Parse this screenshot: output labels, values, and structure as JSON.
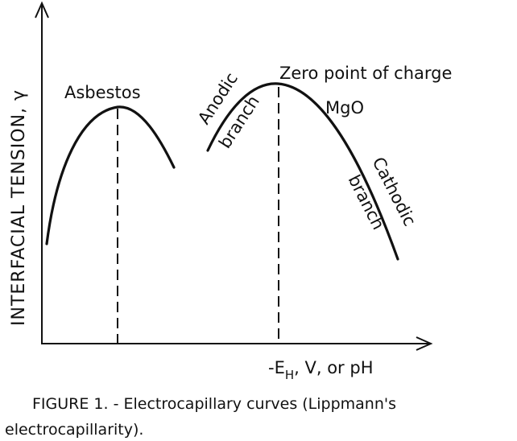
{
  "diagram": {
    "y_axis_label": "INTERFACIAL TENSION, γ",
    "x_axis_label": {
      "main": "-E",
      "subscript": "H",
      "rest": ", V, or pH"
    },
    "curves": [
      {
        "label": "Asbestos"
      },
      {
        "label": "MgO",
        "peak_label": "Zero point of charge",
        "left_branch": [
          "Anodic",
          "branch"
        ],
        "right_branch": [
          "Cathodic",
          "branch"
        ]
      }
    ]
  },
  "caption": {
    "line1": "FIGURE 1. - Electrocapillary curves (Lippmann's",
    "line2": "electrocapillarity)."
  }
}
